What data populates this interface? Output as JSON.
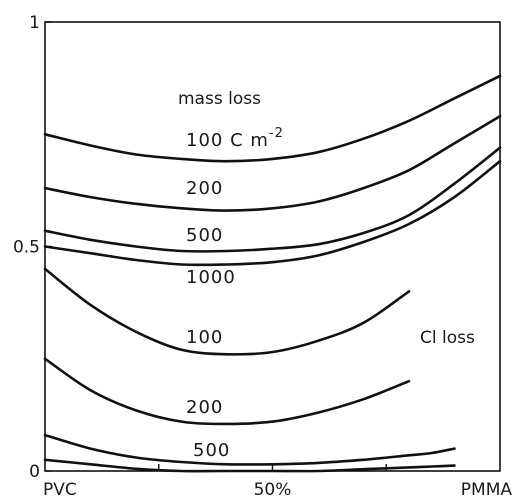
{
  "chart_data": {
    "type": "line",
    "title": "",
    "xlabel": "",
    "ylabel": "",
    "xlim": [
      0,
      100
    ],
    "ylim": [
      0,
      1
    ],
    "y_ticks": [
      {
        "value": 0,
        "label": "0"
      },
      {
        "value": 0.5,
        "label": "0.5"
      },
      {
        "value": 1,
        "label": "1"
      }
    ],
    "x_ticks": [
      {
        "value": 0,
        "label": "PVC"
      },
      {
        "value": 50,
        "label": "50%"
      },
      {
        "value": 100,
        "label": "PMMA"
      }
    ],
    "group_labels": {
      "mass_loss": "mass loss",
      "cl_loss": "Cl loss"
    },
    "series_labels": {
      "m100": "100 C m",
      "m100_exp": "-2",
      "m200": "200",
      "m500": "500",
      "m1000": "1000",
      "c100": "100",
      "c200": "200",
      "c500": "500"
    },
    "series": [
      {
        "id": "m100",
        "group": "mass loss",
        "x": [
          0,
          10,
          20,
          30,
          40,
          50,
          60,
          70,
          80,
          90,
          100
        ],
        "y": [
          0.75,
          0.725,
          0.705,
          0.695,
          0.69,
          0.695,
          0.71,
          0.74,
          0.78,
          0.83,
          0.88
        ]
      },
      {
        "id": "m200",
        "group": "mass loss",
        "x": [
          0,
          10,
          20,
          30,
          40,
          50,
          60,
          70,
          80,
          90,
          100
        ],
        "y": [
          0.63,
          0.61,
          0.595,
          0.585,
          0.58,
          0.585,
          0.6,
          0.63,
          0.67,
          0.73,
          0.79
        ]
      },
      {
        "id": "m500",
        "group": "mass loss",
        "x": [
          0,
          10,
          20,
          30,
          40,
          50,
          60,
          70,
          80,
          90,
          100
        ],
        "y": [
          0.535,
          0.515,
          0.5,
          0.49,
          0.49,
          0.495,
          0.505,
          0.53,
          0.57,
          0.64,
          0.72
        ]
      },
      {
        "id": "m1000",
        "group": "mass loss",
        "x": [
          0,
          10,
          20,
          30,
          40,
          50,
          60,
          70,
          80,
          90,
          100
        ],
        "y": [
          0.5,
          0.485,
          0.47,
          0.46,
          0.46,
          0.465,
          0.48,
          0.51,
          0.55,
          0.61,
          0.69
        ]
      },
      {
        "id": "c100",
        "group": "Cl loss",
        "x": [
          0,
          10,
          20,
          30,
          40,
          50,
          60,
          70,
          80
        ],
        "y": [
          0.45,
          0.37,
          0.31,
          0.27,
          0.26,
          0.265,
          0.29,
          0.33,
          0.4
        ]
      },
      {
        "id": "c200",
        "group": "Cl loss",
        "x": [
          0,
          10,
          20,
          30,
          40,
          50,
          60,
          70,
          80
        ],
        "y": [
          0.25,
          0.18,
          0.135,
          0.11,
          0.105,
          0.11,
          0.13,
          0.16,
          0.2
        ]
      },
      {
        "id": "c500",
        "group": "Cl loss",
        "x": [
          0,
          10,
          20,
          30,
          40,
          50,
          60,
          70,
          80,
          85,
          90
        ],
        "y": [
          0.08,
          0.05,
          0.03,
          0.02,
          0.015,
          0.015,
          0.018,
          0.025,
          0.035,
          0.04,
          0.05
        ]
      },
      {
        "id": "c1000",
        "group": "Cl loss",
        "x": [
          0,
          10,
          20,
          30,
          40,
          50,
          60,
          70,
          80,
          85,
          90
        ],
        "y": [
          0.025,
          0.015,
          0.005,
          0.0,
          0.0,
          0.0,
          0.0,
          0.004,
          0.008,
          0.01,
          0.012
        ]
      }
    ]
  }
}
